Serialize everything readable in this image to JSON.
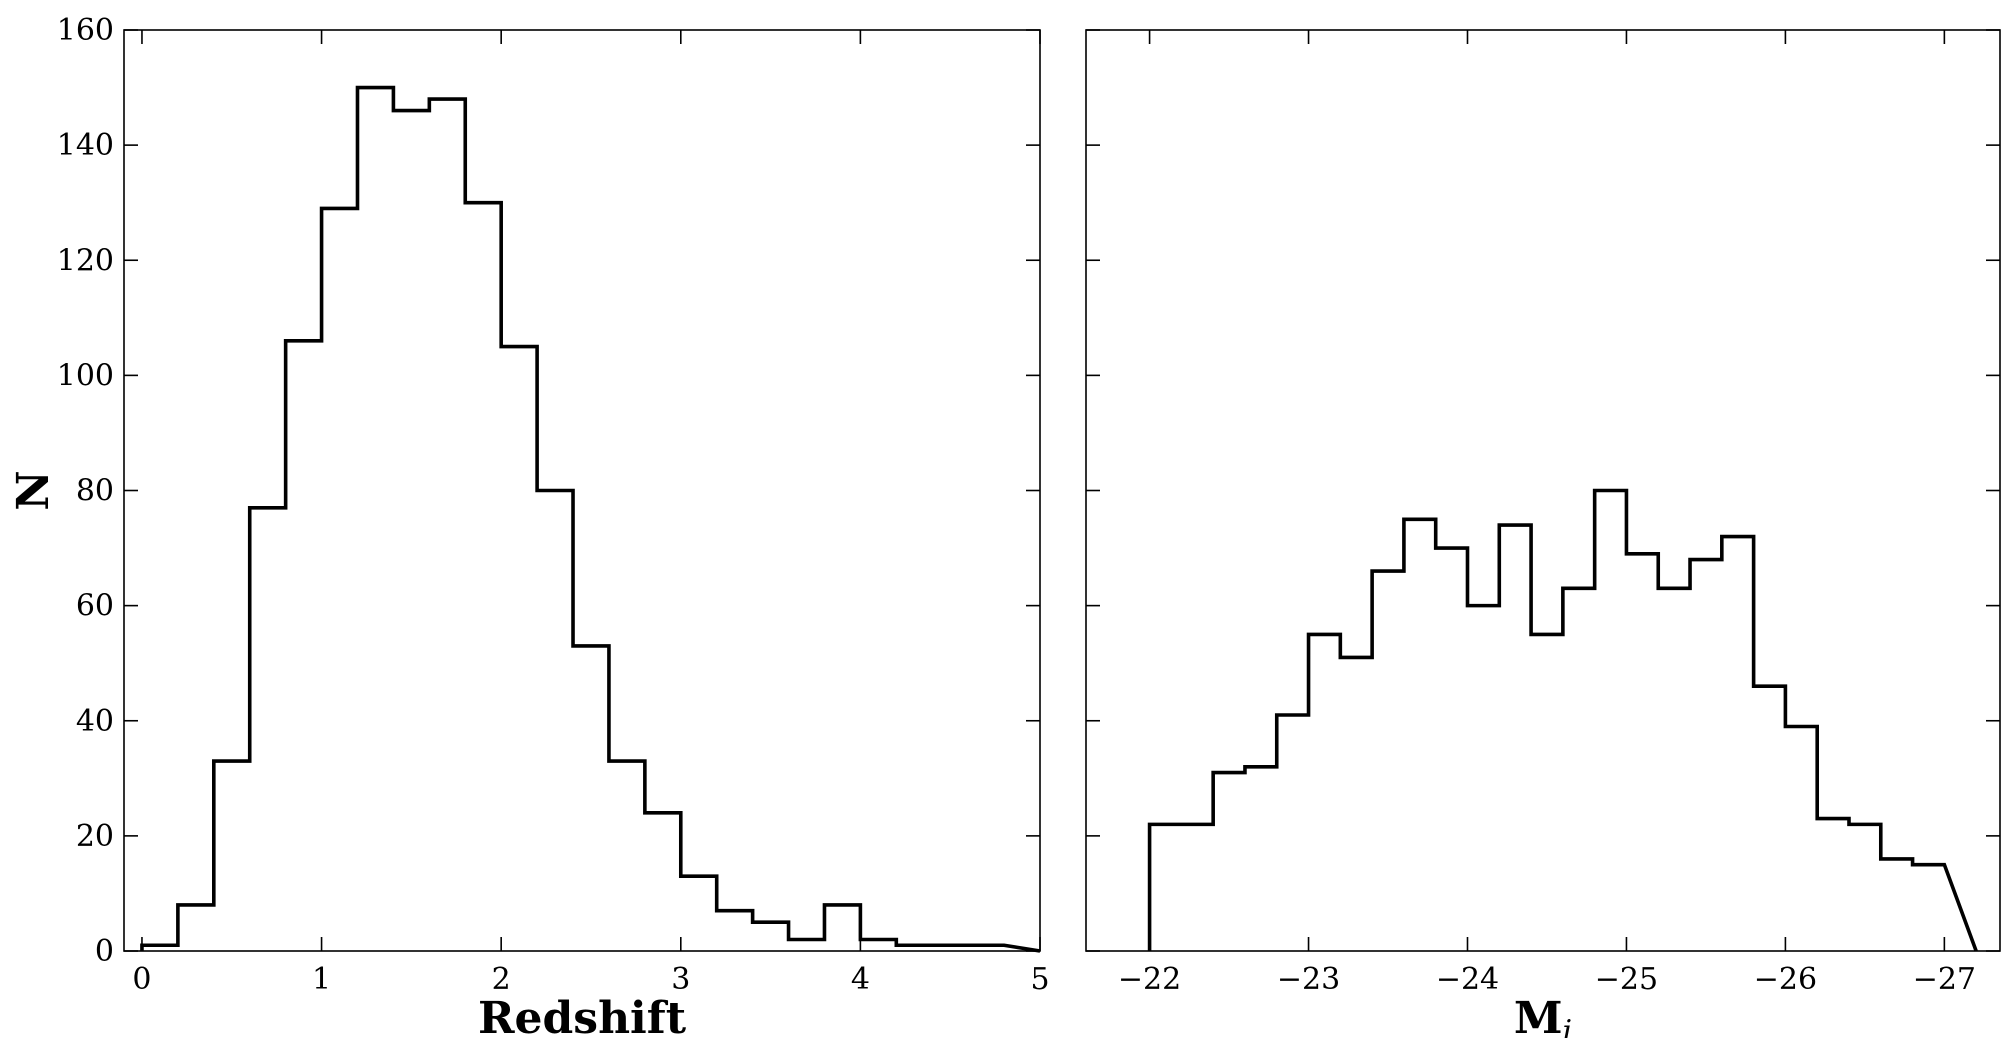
{
  "chart_data": [
    {
      "type": "histogram",
      "xlabel": "Redshift",
      "ylabel": "N",
      "xlim": [
        -0.1,
        5
      ],
      "ylim": [
        0,
        160
      ],
      "xticks": [
        0,
        1,
        2,
        3,
        4,
        5
      ],
      "xtick_labels": [
        "0",
        "1",
        "2",
        "3",
        "4",
        "5"
      ],
      "yticks": [
        0,
        20,
        40,
        60,
        80,
        100,
        120,
        140,
        160
      ],
      "ytick_labels": [
        "0",
        "20",
        "40",
        "60",
        "80",
        "100",
        "120",
        "140",
        "160"
      ],
      "bin_edges": [
        0,
        0.2,
        0.4,
        0.6,
        0.8,
        1.0,
        1.2,
        1.4,
        1.6,
        1.8,
        2.0,
        2.2,
        2.4,
        2.6,
        2.8,
        3.0,
        3.2,
        3.4,
        3.6,
        3.8,
        4.0,
        4.2,
        4.4,
        4.6,
        4.8
      ],
      "counts": [
        1,
        8,
        33,
        77,
        106,
        129,
        150,
        146,
        148,
        130,
        105,
        80,
        53,
        33,
        24,
        13,
        7,
        5,
        2,
        8,
        2,
        1,
        1,
        1
      ],
      "grid": false
    },
    {
      "type": "histogram",
      "xlabel": "M",
      "xlabel_sub": "i",
      "ylabel": "",
      "xlim": [
        -21.6,
        -27.35
      ],
      "ylim": [
        0,
        160
      ],
      "xticks": [
        -22,
        -23,
        -24,
        -25,
        -26,
        -27
      ],
      "xtick_labels": [
        "−22",
        "−23",
        "−24",
        "−25",
        "−26",
        "−27"
      ],
      "yticks": [
        0,
        20,
        40,
        60,
        80,
        100,
        120,
        140,
        160
      ],
      "bin_edges": [
        -22.0,
        -22.2,
        -22.4,
        -22.6,
        -22.8,
        -23.0,
        -23.2,
        -23.4,
        -23.6,
        -23.8,
        -24.0,
        -24.2,
        -24.4,
        -24.6,
        -24.8,
        -25.0,
        -25.2,
        -25.4,
        -25.6,
        -25.8,
        -26.0,
        -26.2,
        -26.4,
        -26.6,
        -26.8,
        -27.0
      ],
      "counts": [
        22,
        22,
        31,
        32,
        41,
        55,
        51,
        66,
        75,
        70,
        60,
        74,
        55,
        63,
        80,
        69,
        63,
        68,
        72,
        46,
        39,
        23,
        22,
        16,
        15
      ],
      "grid": false
    }
  ]
}
